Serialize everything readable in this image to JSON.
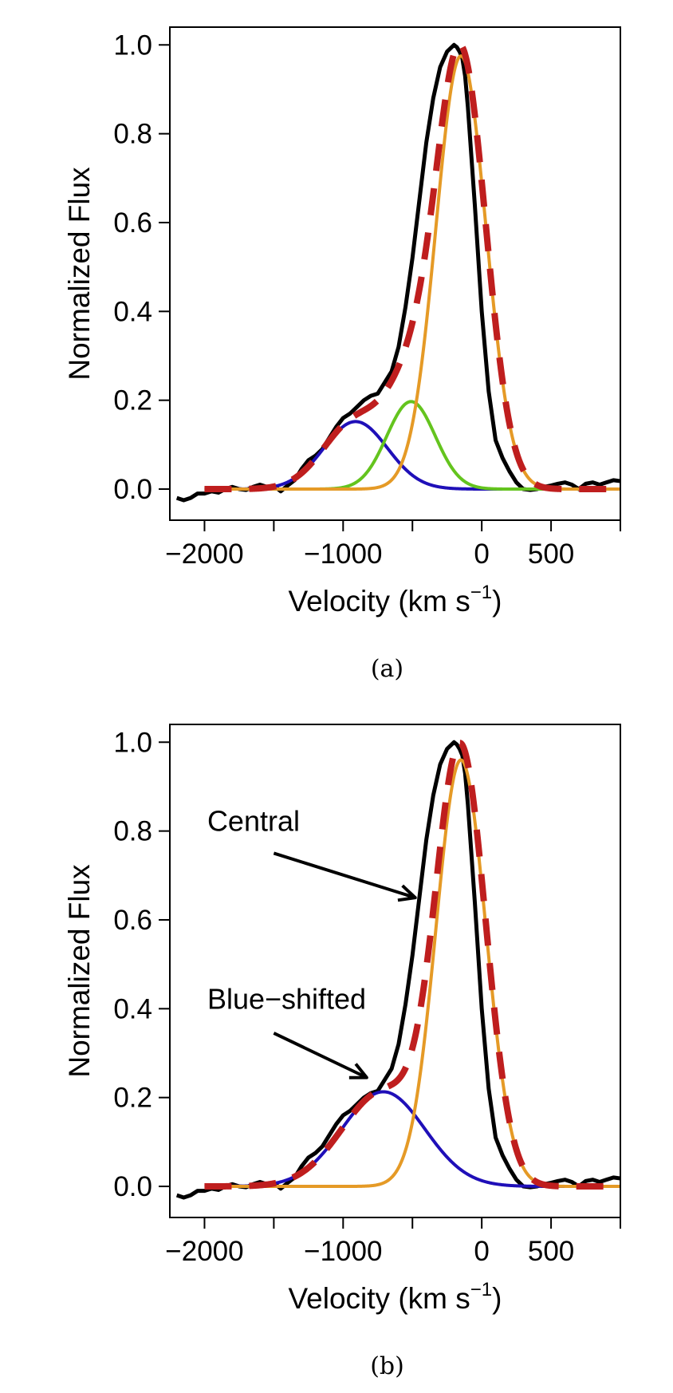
{
  "chart_data": [
    {
      "panel": "a",
      "caption": "(a)",
      "type": "line",
      "xlabel": "Velocity (km s",
      "xlabel_sup": "−1",
      "xlabel_close": ")",
      "ylabel": "Normalized Flux",
      "xlim": [
        -2250,
        1000
      ],
      "ylim": [
        -0.07,
        1.04
      ],
      "x_ticks": [
        -2000,
        -1500,
        -1000,
        -500,
        0,
        500,
        1000
      ],
      "x_tick_labels": [
        {
          "value": -2000,
          "label": "−2000"
        },
        {
          "value": -1000,
          "label": "−1000"
        },
        {
          "value": 0,
          "label": "0"
        },
        {
          "value": 500,
          "label": "500"
        }
      ],
      "y_ticks": [
        0.0,
        0.2,
        0.4,
        0.6,
        0.8,
        1.0
      ],
      "y_tick_labels": [
        "0.0",
        "0.2",
        "0.4",
        "0.6",
        "0.8",
        "1.0"
      ],
      "grid": false,
      "observed": {
        "color": "#000000",
        "x": [
          -2200,
          -2150,
          -2100,
          -2050,
          -2000,
          -1950,
          -1900,
          -1850,
          -1800,
          -1750,
          -1700,
          -1650,
          -1600,
          -1550,
          -1500,
          -1450,
          -1400,
          -1350,
          -1300,
          -1250,
          -1200,
          -1150,
          -1100,
          -1050,
          -1000,
          -950,
          -900,
          -850,
          -800,
          -750,
          -700,
          -650,
          -600,
          -550,
          -500,
          -450,
          -400,
          -350,
          -300,
          -250,
          -200,
          -180,
          -160,
          -140,
          -120,
          -100,
          -50,
          0,
          50,
          100,
          150,
          200,
          250,
          300,
          350,
          400,
          450,
          500,
          550,
          600,
          650,
          700,
          750,
          800,
          850,
          900,
          950,
          1000
        ],
        "y": [
          -0.02,
          -0.025,
          -0.02,
          -0.01,
          -0.01,
          -0.005,
          -0.008,
          0.0,
          0.005,
          0.0,
          -0.002,
          0.005,
          0.01,
          0.005,
          0.008,
          -0.005,
          0.008,
          0.02,
          0.045,
          0.065,
          0.075,
          0.09,
          0.115,
          0.14,
          0.16,
          0.17,
          0.185,
          0.2,
          0.21,
          0.215,
          0.24,
          0.265,
          0.32,
          0.41,
          0.52,
          0.65,
          0.78,
          0.88,
          0.95,
          0.985,
          1.0,
          0.995,
          0.985,
          0.97,
          0.93,
          0.86,
          0.64,
          0.4,
          0.22,
          0.11,
          0.07,
          0.04,
          0.015,
          0.0,
          -0.002,
          0.0,
          0.005,
          0.008,
          0.012,
          0.015,
          0.01,
          0.0,
          0.012,
          0.015,
          0.01,
          0.015,
          0.02,
          0.018
        ]
      },
      "components": [
        {
          "color": "#1f0fb8",
          "amplitude": 0.152,
          "center": -910,
          "sigma": 230,
          "x_range": [
            -2000,
            1000
          ]
        },
        {
          "color": "#64c41e",
          "amplitude": 0.197,
          "center": -510,
          "sigma": 175,
          "x_range": [
            -2000,
            1000
          ]
        },
        {
          "color": "#e59a26",
          "amplitude": 0.975,
          "center": -150,
          "sigma": 180,
          "x_range": [
            -2000,
            1000
          ]
        }
      ],
      "model": {
        "color": "#bf1e1e",
        "x_range": [
          -2000,
          1000
        ]
      },
      "annotations": []
    },
    {
      "panel": "b",
      "caption": "(b)",
      "type": "line",
      "xlabel": "Velocity (km s",
      "xlabel_sup": "−1",
      "xlabel_close": ")",
      "ylabel": "Normalized Flux",
      "xlim": [
        -2250,
        1000
      ],
      "ylim": [
        -0.07,
        1.04
      ],
      "x_ticks": [
        -2000,
        -1500,
        -1000,
        -500,
        0,
        500,
        1000
      ],
      "x_tick_labels": [
        {
          "value": -2000,
          "label": "−2000"
        },
        {
          "value": -1000,
          "label": "−1000"
        },
        {
          "value": 0,
          "label": "0"
        },
        {
          "value": 500,
          "label": "500"
        }
      ],
      "y_ticks": [
        0.0,
        0.2,
        0.4,
        0.6,
        0.8,
        1.0
      ],
      "y_tick_labels": [
        "0.0",
        "0.2",
        "0.4",
        "0.6",
        "0.8",
        "1.0"
      ],
      "grid": false,
      "observed": {
        "color": "#000000",
        "x": [
          -2200,
          -2150,
          -2100,
          -2050,
          -2000,
          -1950,
          -1900,
          -1850,
          -1800,
          -1750,
          -1700,
          -1650,
          -1600,
          -1550,
          -1500,
          -1450,
          -1400,
          -1350,
          -1300,
          -1250,
          -1200,
          -1150,
          -1100,
          -1050,
          -1000,
          -950,
          -900,
          -850,
          -800,
          -750,
          -700,
          -650,
          -600,
          -550,
          -500,
          -450,
          -400,
          -350,
          -300,
          -250,
          -200,
          -180,
          -160,
          -140,
          -120,
          -100,
          -50,
          0,
          50,
          100,
          150,
          200,
          250,
          300,
          350,
          400,
          450,
          500,
          550,
          600,
          650,
          700,
          750,
          800,
          850,
          900,
          950,
          1000
        ],
        "y": [
          -0.02,
          -0.025,
          -0.02,
          -0.01,
          -0.01,
          -0.005,
          -0.008,
          0.0,
          0.005,
          0.0,
          -0.002,
          0.005,
          0.01,
          0.005,
          0.008,
          -0.005,
          0.008,
          0.02,
          0.045,
          0.065,
          0.075,
          0.09,
          0.115,
          0.14,
          0.16,
          0.17,
          0.185,
          0.2,
          0.21,
          0.215,
          0.24,
          0.265,
          0.32,
          0.41,
          0.52,
          0.65,
          0.78,
          0.88,
          0.95,
          0.985,
          1.0,
          0.995,
          0.985,
          0.97,
          0.93,
          0.86,
          0.64,
          0.4,
          0.22,
          0.11,
          0.07,
          0.04,
          0.015,
          0.0,
          -0.002,
          0.0,
          0.005,
          0.008,
          0.012,
          0.015,
          0.01,
          0.0,
          0.012,
          0.015,
          0.01,
          0.015,
          0.02,
          0.018
        ]
      },
      "components": [
        {
          "color": "#1f0fb8",
          "amplitude": 0.213,
          "center": -710,
          "sigma": 300,
          "x_range": [
            -2000,
            1000
          ]
        },
        {
          "color": "#e59a26",
          "amplitude": 0.96,
          "center": -150,
          "sigma": 180,
          "x_range": [
            -2000,
            1000
          ]
        }
      ],
      "model": {
        "color": "#bf1e1e",
        "x_range": [
          -2000,
          1000
        ]
      },
      "annotations": [
        {
          "text": "Central",
          "x": -1980,
          "y": 0.8,
          "arrow_from": [
            -1500,
            0.75
          ],
          "arrow_to": [
            -480,
            0.65
          ]
        },
        {
          "text": "Blue−shifted",
          "x": -1980,
          "y": 0.4,
          "arrow_from": [
            -1500,
            0.345
          ],
          "arrow_to": [
            -830,
            0.245
          ]
        }
      ]
    }
  ]
}
